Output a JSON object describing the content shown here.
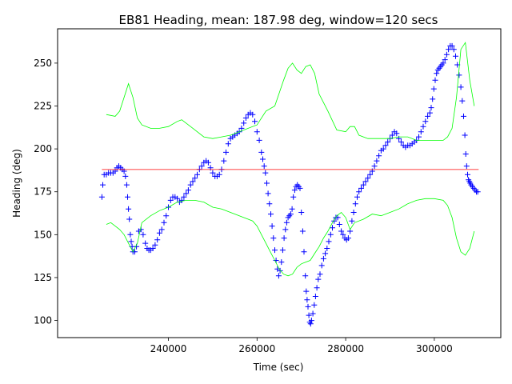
{
  "chart_data": {
    "type": "scatter",
    "title": "EB81 Heading, mean: 187.98 deg, window=120 secs",
    "xlabel": "Time (sec)",
    "ylabel": "Heading (deg)",
    "xlim": [
      215000,
      315000
    ],
    "ylim": [
      90,
      270
    ],
    "xticks": [
      240000,
      260000,
      280000,
      300000
    ],
    "yticks": [
      100,
      125,
      150,
      175,
      200,
      225,
      250
    ],
    "grid": false,
    "legend": "none",
    "mean_value": 187.98,
    "series": [
      {
        "kind": "scatter",
        "marker": "+",
        "color": "#0000ff",
        "x": [
          225000,
          225200,
          225500,
          226000,
          226500,
          227000,
          227500,
          228000,
          228400,
          228800,
          229200,
          229600,
          230000,
          230300,
          230600,
          230800,
          231000,
          231200,
          231400,
          231600,
          231800,
          232000,
          232400,
          232800,
          233300,
          233800,
          234300,
          234800,
          235200,
          235600,
          236000,
          236500,
          237000,
          237500,
          238000,
          238500,
          239000,
          239500,
          240000,
          240500,
          241000,
          241500,
          242000,
          242500,
          243000,
          243500,
          244000,
          244500,
          245000,
          245500,
          246000,
          246500,
          247000,
          247500,
          248000,
          248500,
          249000,
          249500,
          250000,
          250500,
          251000,
          251500,
          252000,
          252500,
          253000,
          253500,
          254000,
          254500,
          255000,
          255500,
          256000,
          256500,
          257000,
          257500,
          258000,
          258500,
          259000,
          259500,
          260000,
          260500,
          261000,
          261300,
          261600,
          261900,
          262200,
          262500,
          262800,
          263100,
          263400,
          263700,
          264000,
          264300,
          264600,
          264900,
          265200,
          265500,
          265800,
          266100,
          266400,
          266700,
          267000,
          267300,
          267600,
          267900,
          268200,
          268500,
          268800,
          269100,
          269400,
          269700,
          270000,
          270300,
          270600,
          270900,
          271100,
          271300,
          271500,
          271700,
          271900,
          272100,
          272300,
          272600,
          272900,
          273200,
          273500,
          273800,
          274200,
          274600,
          275000,
          275400,
          275800,
          276200,
          276600,
          277000,
          277400,
          277800,
          278200,
          278600,
          279000,
          279400,
          279800,
          280200,
          280600,
          281000,
          281400,
          281800,
          282200,
          282600,
          283000,
          283500,
          284000,
          284500,
          285000,
          285500,
          286000,
          286500,
          287000,
          287500,
          288000,
          288500,
          289000,
          289500,
          290000,
          290500,
          291000,
          291500,
          292000,
          292500,
          293000,
          293500,
          294000,
          294500,
          295000,
          295500,
          296000,
          296500,
          297000,
          297500,
          298000,
          298500,
          299000,
          299300,
          299600,
          299900,
          300200,
          300500,
          300800,
          301100,
          301400,
          301700,
          302000,
          302400,
          302800,
          303200,
          303600,
          304000,
          304400,
          304800,
          305200,
          305600,
          306000,
          306300,
          306600,
          306900,
          307100,
          307300,
          307500,
          307700,
          307900,
          308100,
          308300,
          308600,
          308900,
          309200,
          309500,
          309800
        ],
        "y": [
          172,
          179,
          185,
          185,
          186,
          186,
          186,
          187,
          189,
          190,
          189,
          188,
          187,
          184,
          179,
          172,
          165,
          159,
          150,
          146,
          143,
          140,
          140,
          143,
          152,
          153,
          150,
          145,
          142,
          141,
          141,
          142,
          144,
          147,
          151,
          153,
          157,
          161,
          166,
          170,
          172,
          172,
          171,
          169,
          170,
          172,
          174,
          176,
          179,
          181,
          183,
          185,
          188,
          190,
          192,
          193,
          192,
          189,
          186,
          184,
          184,
          185,
          188,
          193,
          198,
          203,
          206,
          207,
          208,
          209,
          210,
          212,
          215,
          218,
          220,
          221,
          220,
          216,
          210,
          205,
          198,
          194,
          190,
          186,
          180,
          174,
          168,
          162,
          155,
          148,
          141,
          135,
          130,
          126,
          129,
          134,
          141,
          148,
          153,
          157,
          160,
          161,
          162,
          165,
          172,
          176,
          178,
          179,
          178,
          177,
          163,
          152,
          140,
          126,
          117,
          112,
          108,
          103,
          99,
          98,
          100,
          104,
          109,
          114,
          119,
          124,
          127,
          132,
          136,
          139,
          142,
          146,
          150,
          154,
          158,
          160,
          160,
          156,
          152,
          150,
          148,
          147,
          148,
          152,
          158,
          163,
          168,
          172,
          175,
          177,
          179,
          181,
          183,
          185,
          187,
          190,
          193,
          196,
          199,
          200,
          202,
          204,
          206,
          208,
          210,
          209,
          206,
          204,
          202,
          201,
          202,
          202,
          203,
          204,
          205,
          207,
          210,
          213,
          216,
          219,
          221,
          224,
          229,
          235,
          240,
          244,
          246,
          247,
          248,
          249,
          250,
          252,
          255,
          258,
          260,
          260,
          258,
          254,
          249,
          243,
          236,
          228,
          219,
          208,
          197,
          190,
          185,
          182,
          181,
          180,
          179,
          178,
          177,
          176,
          175,
          175
        ]
      },
      {
        "kind": "line",
        "name": "mean",
        "color": "#ff0000",
        "x": [
          225000,
          310000
        ],
        "y": [
          187.98,
          187.98
        ]
      },
      {
        "kind": "line",
        "name": "upper",
        "color": "#00ff00",
        "x": [
          226000,
          228000,
          229000,
          230000,
          231000,
          232000,
          233000,
          234000,
          236000,
          238000,
          240000,
          242000,
          243000,
          245000,
          248000,
          250000,
          252000,
          254000,
          256000,
          258000,
          260000,
          262000,
          264000,
          266000,
          267000,
          268000,
          269000,
          270000,
          271000,
          272000,
          273000,
          274000,
          276000,
          278000,
          280000,
          281000,
          282000,
          283000,
          285000,
          288000,
          290000,
          292000,
          294000,
          296000,
          298000,
          300000,
          302000,
          303000,
          304000,
          305000,
          306000,
          307000,
          308000,
          309000
        ],
        "y": [
          220,
          219,
          222,
          230,
          238,
          230,
          218,
          214,
          212,
          212,
          213,
          216,
          217,
          213,
          207,
          206,
          207,
          208,
          210,
          212,
          214,
          222,
          225,
          240,
          247,
          250,
          246,
          244,
          248,
          249,
          244,
          232,
          222,
          211,
          210,
          213,
          213,
          208,
          206,
          206,
          206,
          207,
          207,
          205,
          205,
          205,
          205,
          207,
          212,
          230,
          258,
          262,
          240,
          225
        ]
      },
      {
        "kind": "line",
        "name": "lower",
        "color": "#00ff00",
        "x": [
          226000,
          227000,
          228000,
          229000,
          230000,
          231000,
          232000,
          233000,
          234000,
          236000,
          238000,
          240000,
          242000,
          244000,
          246000,
          248000,
          250000,
          252000,
          254000,
          256000,
          258000,
          259000,
          260000,
          261000,
          262000,
          263000,
          264000,
          265000,
          266000,
          267000,
          268000,
          269000,
          270000,
          271000,
          272000,
          273000,
          274000,
          275000,
          276000,
          277000,
          278000,
          279000,
          280000,
          281000,
          282000,
          284000,
          286000,
          288000,
          290000,
          292000,
          294000,
          296000,
          298000,
          300000,
          302000,
          303000,
          304000,
          305000,
          306000,
          307000,
          308000,
          309000
        ],
        "y": [
          156,
          157,
          155,
          153,
          150,
          145,
          140,
          145,
          157,
          161,
          164,
          166,
          169,
          170,
          170,
          169,
          166,
          165,
          163,
          161,
          159,
          158,
          155,
          150,
          145,
          140,
          135,
          130,
          127,
          126,
          127,
          131,
          133,
          134,
          135,
          139,
          143,
          148,
          152,
          157,
          161,
          163,
          160,
          153,
          157,
          159,
          162,
          161,
          163,
          165,
          168,
          170,
          171,
          171,
          170,
          167,
          160,
          148,
          140,
          138,
          142,
          152
        ]
      }
    ]
  }
}
